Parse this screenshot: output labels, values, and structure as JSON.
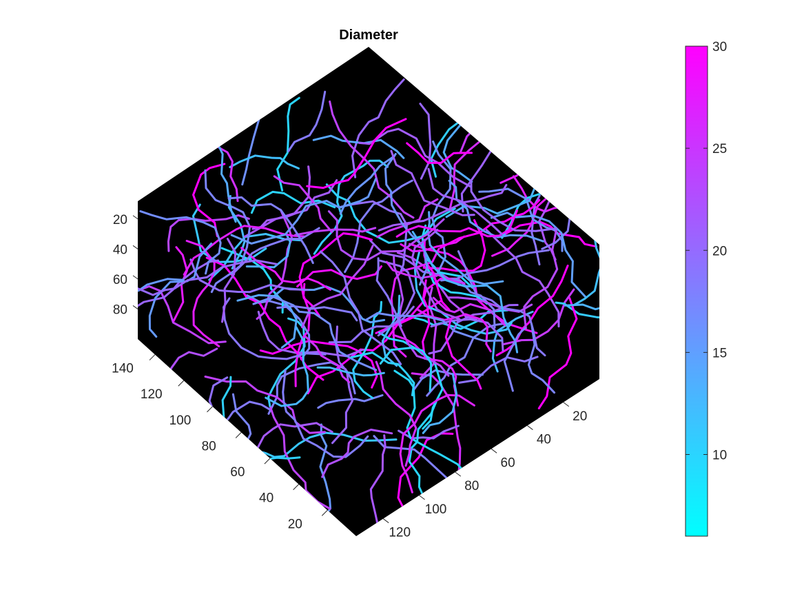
{
  "chart_data": {
    "type": "3d-network",
    "title": "Diameter",
    "background_color": "#000000",
    "colormap": {
      "low": "#00ffff",
      "high": "#ff00ff",
      "name": "cool"
    },
    "color_range": [
      6,
      30
    ],
    "colorbar": {
      "ticks": [
        "10",
        "15",
        "20",
        "25",
        "30"
      ],
      "values": [
        10,
        15,
        20,
        25,
        30
      ],
      "placement": "right"
    },
    "axes": {
      "x_ticks": [
        "20",
        "40",
        "60",
        "80",
        "100",
        "120"
      ],
      "x_values": [
        20,
        40,
        60,
        80,
        100,
        120
      ],
      "y_ticks": [
        "20",
        "40",
        "60",
        "80",
        "100",
        "120",
        "140"
      ],
      "y_values": [
        20,
        40,
        60,
        80,
        100,
        120,
        140
      ],
      "z_ticks": [
        "20",
        "40",
        "60",
        "80"
      ],
      "z_values": [
        20,
        40,
        60,
        80
      ]
    },
    "grid": false
  }
}
